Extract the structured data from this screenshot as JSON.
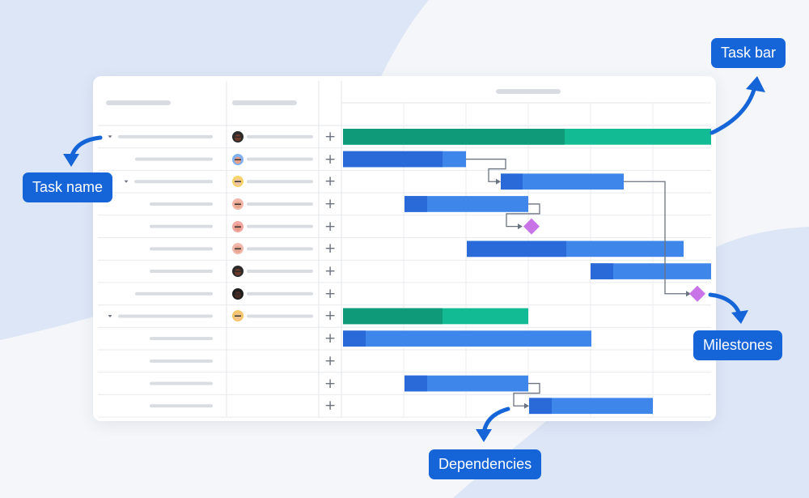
{
  "callouts": {
    "task_bar": "Task bar",
    "task_name": "Task name",
    "milestones": "Milestones",
    "dependencies": "Dependencies"
  },
  "colors": {
    "accent_blue": "#1565d8",
    "task_blue_dark": "#2a6ad8",
    "task_blue": "#3f86ea",
    "group_green_dark": "#0f9a7a",
    "group_green": "#12bb93",
    "milestone": "#c874e6",
    "dependency_line": "#6b7280"
  },
  "icons": {
    "add": "plus-icon",
    "expand": "caret-down-icon",
    "assignee": "avatar"
  },
  "add_symbol": "+",
  "rows": [
    {
      "kind": "group",
      "expandable": true,
      "assignee": true
    },
    {
      "kind": "task",
      "expandable": false,
      "assignee": true
    },
    {
      "kind": "task",
      "expandable": true,
      "assignee": true
    },
    {
      "kind": "task",
      "expandable": false,
      "assignee": true
    },
    {
      "kind": "task",
      "expandable": false,
      "assignee": true
    },
    {
      "kind": "task",
      "expandable": false,
      "assignee": true
    },
    {
      "kind": "task",
      "expandable": false,
      "assignee": true
    },
    {
      "kind": "task",
      "expandable": false,
      "assignee": true
    },
    {
      "kind": "group",
      "expandable": true,
      "assignee": true
    },
    {
      "kind": "task",
      "expandable": false,
      "assignee": false
    },
    {
      "kind": "task",
      "expandable": false,
      "assignee": false
    },
    {
      "kind": "task",
      "expandable": false,
      "assignee": false
    },
    {
      "kind": "task",
      "expandable": false,
      "assignee": false
    }
  ]
}
